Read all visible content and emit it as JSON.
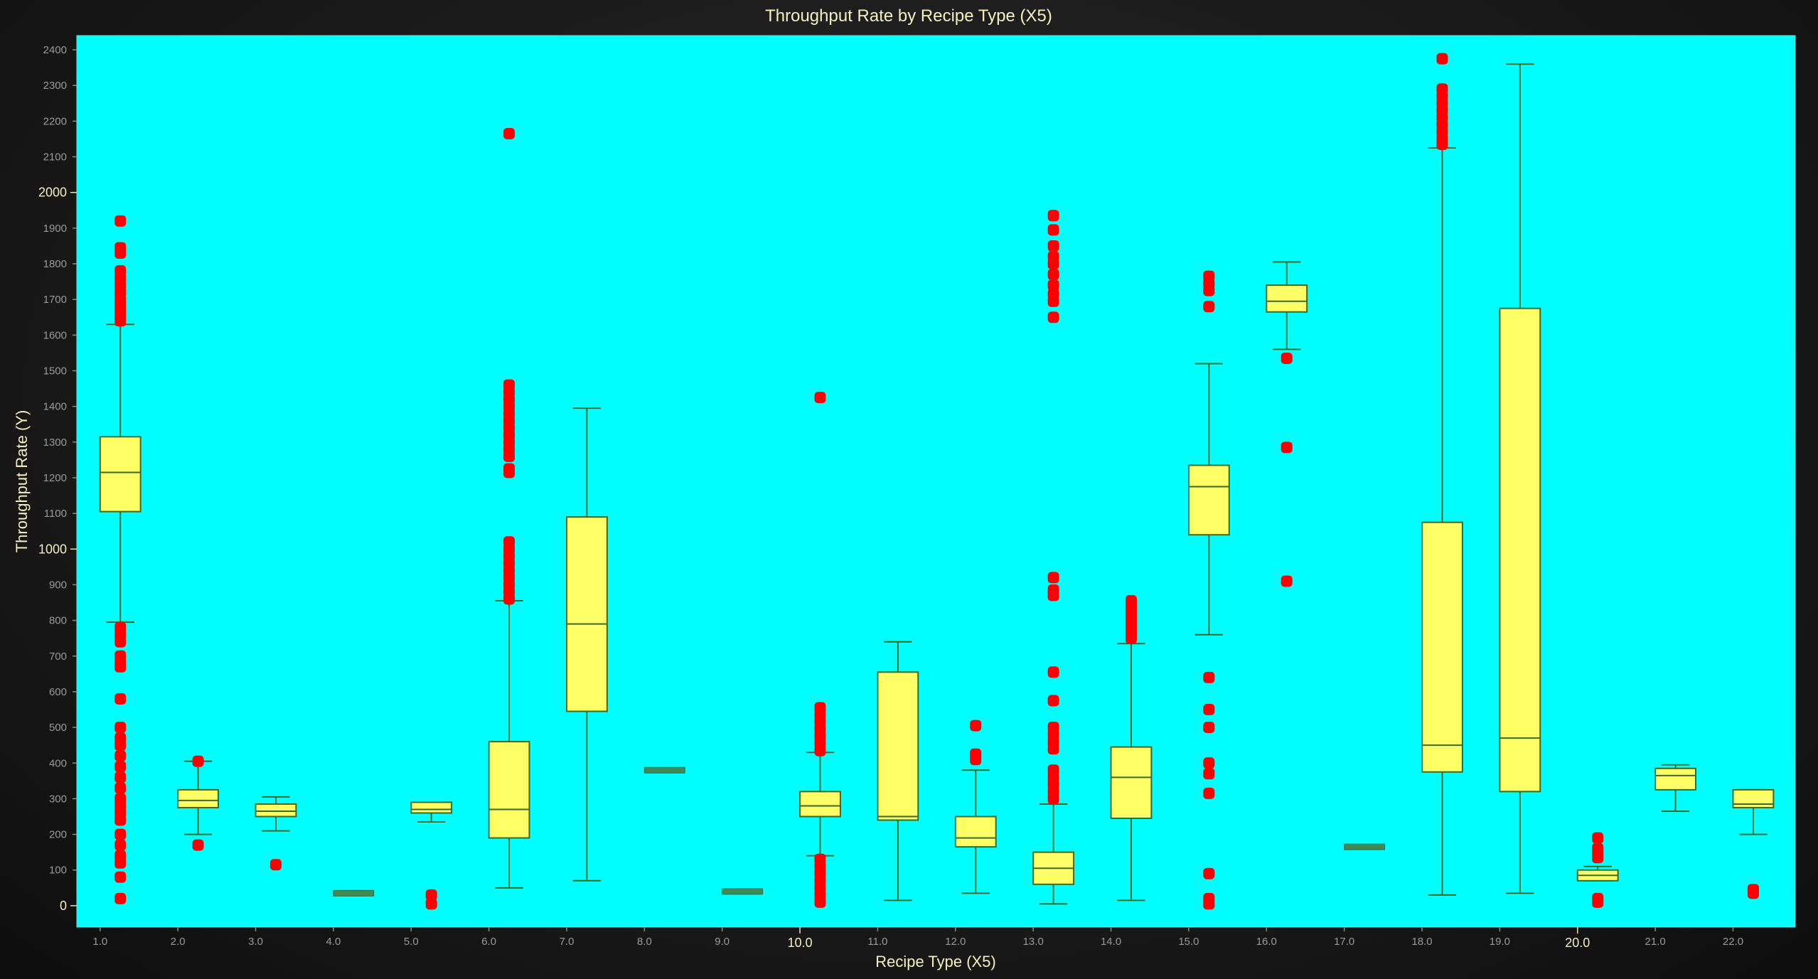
{
  "chart_data": {
    "type": "box",
    "title": "Throughput Rate by Recipe Type (X5)",
    "xlabel": "Recipe Type (X5)",
    "ylabel": "Throughput Rate (Y)",
    "xlim": [
      0.7,
      22.8
    ],
    "ylim": [
      -60,
      2440
    ],
    "y_ticks": [
      0,
      100,
      200,
      300,
      400,
      500,
      600,
      700,
      800,
      900,
      1000,
      1100,
      1200,
      1300,
      1400,
      1500,
      1600,
      1700,
      1800,
      1900,
      2000,
      2100,
      2200,
      2300,
      2400
    ],
    "y_tick_labels": [
      "0",
      "100",
      "200",
      "300",
      "400",
      "500",
      "600",
      "700",
      "800",
      "900",
      "1000",
      "1100",
      "1200",
      "1300",
      "1400",
      "1500",
      "1600",
      "1700",
      "1800",
      "1900",
      "2000",
      "2100",
      "2200",
      "2300",
      "2400"
    ],
    "y_major_ticks": [
      0,
      1000,
      2000
    ],
    "x_ticks": [
      1,
      2,
      3,
      4,
      5,
      6,
      7,
      8,
      9,
      10,
      11,
      12,
      13,
      14,
      15,
      16,
      17,
      18,
      19,
      20,
      21,
      22
    ],
    "x_tick_labels": [
      "1.0",
      "2.0",
      "3.0",
      "4.0",
      "5.0",
      "6.0",
      "7.0",
      "8.0",
      "9.0",
      "10.0",
      "11.0",
      "12.0",
      "13.0",
      "14.0",
      "15.0",
      "16.0",
      "17.0",
      "18.0",
      "19.0",
      "20.0",
      "21.0",
      "22.0"
    ],
    "x_major_ticks": [
      10,
      20
    ],
    "grid": false,
    "colors": {
      "plot_background": "#00ffff",
      "box_fill": "#ffff66",
      "box_stroke": "#3a6a28",
      "outlier": "#ff0000",
      "text": "#f5f0c0"
    },
    "boxes": [
      {
        "x": 1,
        "min": 795,
        "q1": 1105,
        "median": 1215,
        "q3": 1315,
        "max": 1630,
        "outliers": [
          1920,
          1845,
          1830,
          1780,
          1760,
          1740,
          1720,
          1700,
          1685,
          1670,
          1655,
          1640,
          780,
          760,
          740,
          700,
          680,
          670,
          580,
          500,
          470,
          450,
          420,
          390,
          360,
          330,
          300,
          280,
          260,
          240,
          200,
          170,
          140,
          120,
          80,
          20
        ]
      },
      {
        "x": 2,
        "min": 200,
        "q1": 275,
        "median": 295,
        "q3": 325,
        "max": 405,
        "outliers": [
          405,
          170
        ]
      },
      {
        "x": 3,
        "min": 210,
        "q1": 250,
        "median": 265,
        "q3": 285,
        "max": 305,
        "outliers": [
          115
        ]
      },
      {
        "x": 4,
        "min": 35,
        "q1": 35,
        "median": 35,
        "q3": 35,
        "max": 35,
        "outliers": []
      },
      {
        "x": 5,
        "min": 235,
        "q1": 260,
        "median": 270,
        "q3": 290,
        "max": 290,
        "outliers": [
          30,
          5
        ]
      },
      {
        "x": 6,
        "min": 50,
        "q1": 190,
        "median": 270,
        "q3": 460,
        "max": 855,
        "outliers": [
          2165,
          1460,
          1440,
          1420,
          1400,
          1380,
          1360,
          1340,
          1320,
          1300,
          1280,
          1260,
          1225,
          1215,
          1020,
          1000,
          980,
          960,
          940,
          920,
          900,
          880,
          860
        ]
      },
      {
        "x": 7,
        "min": 70,
        "q1": 545,
        "median": 790,
        "q3": 1090,
        "max": 1395,
        "outliers": []
      },
      {
        "x": 8,
        "min": 380,
        "q1": 380,
        "median": 380,
        "q3": 380,
        "max": 380,
        "outliers": []
      },
      {
        "x": 9,
        "min": 40,
        "q1": 40,
        "median": 40,
        "q3": 40,
        "max": 40,
        "outliers": []
      },
      {
        "x": 10,
        "min": 140,
        "q1": 250,
        "median": 280,
        "q3": 320,
        "max": 430,
        "outliers": [
          1425,
          555,
          535,
          515,
          495,
          475,
          455,
          435,
          130,
          110,
          90,
          70,
          50,
          30,
          10
        ]
      },
      {
        "x": 11,
        "min": 15,
        "q1": 240,
        "median": 250,
        "q3": 655,
        "max": 740,
        "outliers": []
      },
      {
        "x": 12,
        "min": 35,
        "q1": 165,
        "median": 190,
        "q3": 250,
        "max": 380,
        "outliers": [
          505,
          425,
          410
        ]
      },
      {
        "x": 13,
        "min": 5,
        "q1": 60,
        "median": 105,
        "q3": 150,
        "max": 285,
        "outliers": [
          1935,
          1895,
          1850,
          1820,
          1800,
          1770,
          1740,
          1715,
          1695,
          1650,
          920,
          885,
          870,
          655,
          575,
          500,
          480,
          460,
          440,
          380,
          360,
          340,
          320,
          300
        ]
      },
      {
        "x": 14,
        "min": 15,
        "q1": 245,
        "median": 360,
        "q3": 445,
        "max": 735,
        "outliers": [
          855,
          840,
          825,
          810,
          795,
          780,
          765,
          750
        ]
      },
      {
        "x": 15,
        "min": 760,
        "q1": 1040,
        "median": 1175,
        "q3": 1235,
        "max": 1520,
        "outliers": [
          1765,
          1745,
          1725,
          1680,
          640,
          550,
          500,
          400,
          370,
          315,
          90,
          20,
          5
        ]
      },
      {
        "x": 16,
        "min": 1560,
        "q1": 1665,
        "median": 1695,
        "q3": 1740,
        "max": 1805,
        "outliers": [
          1535,
          1285,
          910
        ]
      },
      {
        "x": 17,
        "min": 165,
        "q1": 165,
        "median": 165,
        "q3": 165,
        "max": 165,
        "outliers": []
      },
      {
        "x": 18,
        "min": 30,
        "q1": 375,
        "median": 450,
        "q3": 1075,
        "max": 2125,
        "outliers": [
          2375,
          2290,
          2270,
          2250,
          2230,
          2210,
          2190,
          2170,
          2150,
          2135
        ]
      },
      {
        "x": 19,
        "min": 35,
        "q1": 320,
        "median": 470,
        "q3": 1675,
        "max": 2360,
        "outliers": []
      },
      {
        "x": 20,
        "min": 70,
        "q1": 70,
        "median": 85,
        "q3": 100,
        "max": 110,
        "outliers": [
          190,
          160,
          150,
          135,
          20,
          10
        ]
      },
      {
        "x": 21,
        "min": 265,
        "q1": 325,
        "median": 365,
        "q3": 385,
        "max": 395,
        "outliers": []
      },
      {
        "x": 22,
        "min": 200,
        "q1": 275,
        "median": 285,
        "q3": 325,
        "max": 325,
        "outliers": [
          45,
          35
        ]
      }
    ]
  }
}
